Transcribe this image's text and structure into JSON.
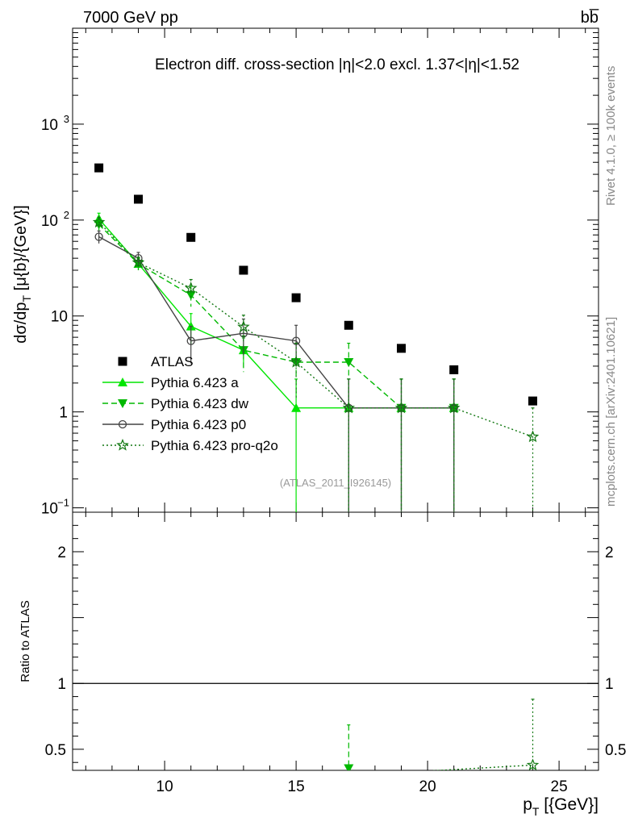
{
  "header": {
    "energy_label": "7000 GeV pp",
    "process_label": "bb̅"
  },
  "side": {
    "rivet_label": "Rivet 4.1.0, ≥ 100k events",
    "mcplots_label": "mcplots.cern.ch [arXiv:2401.10621]"
  },
  "chart_data": [
    {
      "type": "line",
      "panel": "main",
      "title": "Electron diff. cross-section |η|<2.0 excl. 1.37<|η|<1.52",
      "ylabel": "dσ/dp_T [μ{b}/{GeV}]",
      "ylabel_parts": {
        "pre": "dσ/dp",
        "sub": "T",
        "post": " [μ{b}/{GeV}]"
      },
      "xlabel": "p_T [{GeV}]",
      "xlim": [
        6.5,
        26.5
      ],
      "ylim": [
        0.09,
        10000
      ],
      "yscale": "log",
      "y_ticks": [
        {
          "value": 0.1,
          "label": "10",
          "sup": "−1"
        },
        {
          "value": 1,
          "label": "1",
          "sup": ""
        },
        {
          "value": 10,
          "label": "10",
          "sup": ""
        },
        {
          "value": 100,
          "label": "10",
          "sup": "2"
        },
        {
          "value": 1000,
          "label": "10",
          "sup": "3"
        }
      ],
      "watermark": "(ATLAS_2011_I926145)",
      "legend_position": "middle-left",
      "series": [
        {
          "name": "ATLAS",
          "color": "#000000",
          "marker": "square",
          "line": "none",
          "x": [
            7.5,
            9,
            11,
            13,
            15,
            17,
            19,
            21,
            24
          ],
          "y": [
            350,
            165,
            66,
            30,
            15.5,
            8,
            4.6,
            2.75,
            1.3
          ],
          "err": [
            0,
            0,
            0,
            0,
            0,
            0,
            0,
            0,
            0
          ]
        },
        {
          "name": "Pythia 6.423 a",
          "color": "#00e600",
          "marker": "triangle-up",
          "line": "solid",
          "x": [
            7.5,
            9,
            11,
            13,
            15,
            17,
            19,
            21
          ],
          "y": [
            103,
            35,
            7.8,
            4.4,
            1.1,
            1.1,
            1.1,
            1.1
          ],
          "err": [
            15,
            5,
            2.8,
            1.5,
            1.1,
            1.1,
            1.1,
            1.1
          ]
        },
        {
          "name": "Pythia 6.423 dw",
          "color": "#00b800",
          "marker": "triangle-down",
          "line": "dashed",
          "x": [
            7.5,
            9,
            11,
            13,
            15,
            17,
            19,
            21
          ],
          "y": [
            90,
            35,
            16.5,
            4.4,
            3.3,
            3.3,
            1.1,
            1.1
          ],
          "err": [
            12,
            5,
            4,
            1.8,
            1.9,
            1.9,
            1.1,
            1.1
          ]
        },
        {
          "name": "Pythia 6.423 p0",
          "color": "#444444",
          "marker": "circle-open",
          "line": "solid",
          "x": [
            7.5,
            9,
            11,
            13,
            15,
            17,
            19,
            21
          ],
          "y": [
            67,
            40,
            5.5,
            6.6,
            5.5,
            1.1,
            1.1,
            1.1
          ],
          "err": [
            10,
            6,
            2.3,
            2.7,
            2.5,
            1.1,
            1.1,
            1.1
          ]
        },
        {
          "name": "Pythia 6.423 pro-q2o",
          "color": "#117711",
          "marker": "star",
          "line": "dotted",
          "x": [
            7.5,
            9,
            11,
            13,
            15,
            17,
            19,
            21,
            24
          ],
          "y": [
            95,
            36,
            19.5,
            7.7,
            3.3,
            1.1,
            1.1,
            1.1,
            0.55
          ],
          "err": [
            12,
            5,
            4.5,
            2.5,
            1.9,
            1.1,
            1.1,
            1.1,
            0.55
          ]
        }
      ]
    },
    {
      "type": "line",
      "panel": "ratio",
      "ylabel": "Ratio to ATLAS",
      "xlabel": "p_T [{GeV}]",
      "xlabel_parts": {
        "pre": "p",
        "sub": "T",
        "post": " [{GeV}]"
      },
      "xlim": [
        6.5,
        26.5
      ],
      "ylim": [
        0.34,
        2.3
      ],
      "x_ticks": [
        10,
        15,
        20,
        25
      ],
      "y_ticks": [
        0.5,
        1,
        2
      ],
      "reference_line": 1,
      "series": [
        {
          "name": "Pythia 6.423 dw",
          "color": "#00b800",
          "marker": "triangle-down",
          "line": "dashed",
          "x": [
            17
          ],
          "y": [
            0.355
          ],
          "err_up": [
            0.33
          ]
        },
        {
          "name": "Pythia 6.423 pro-q2o",
          "color": "#117711",
          "marker": "star",
          "line": "dotted",
          "x": [
            19.6,
            24
          ],
          "y": [
            0.33,
            0.38
          ],
          "err_up": [
            0,
            0.5
          ]
        }
      ]
    }
  ]
}
